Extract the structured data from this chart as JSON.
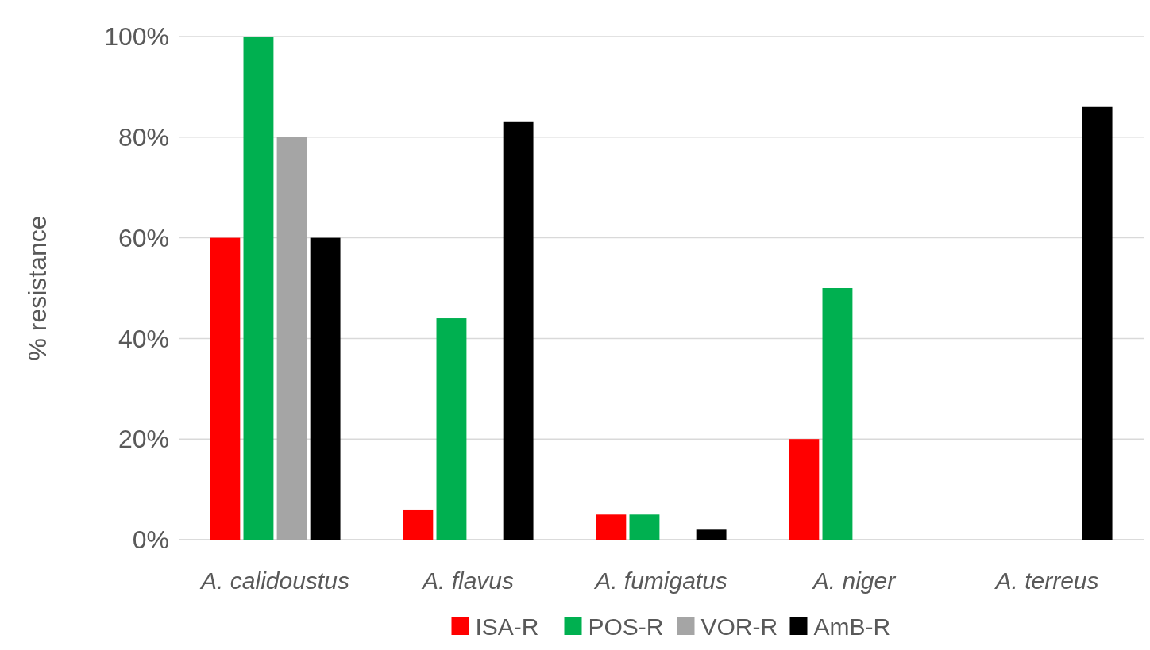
{
  "chart_data": {
    "type": "bar",
    "ylabel": "% resistance",
    "categories": [
      "A. calidoustus",
      "A. flavus",
      "A. fumigatus",
      "A. niger",
      "A. terreus"
    ],
    "series": [
      {
        "name": "ISA-R",
        "color": "#ff0000",
        "values": [
          60,
          6,
          5,
          20,
          0
        ]
      },
      {
        "name": "POS-R",
        "color": "#00b050",
        "values": [
          100,
          44,
          5,
          50,
          0
        ]
      },
      {
        "name": "VOR-R",
        "color": "#a5a5a5",
        "values": [
          80,
          0,
          0,
          0,
          0
        ]
      },
      {
        "name": "AmB-R",
        "color": "#000000",
        "values": [
          60,
          83,
          2,
          0,
          86
        ]
      }
    ],
    "ylim": [
      0,
      100
    ],
    "yticks": [
      {
        "value": 0,
        "label": "0%"
      },
      {
        "value": 20,
        "label": "20%"
      },
      {
        "value": 40,
        "label": "40%"
      },
      {
        "value": 60,
        "label": "60%"
      },
      {
        "value": 80,
        "label": "80%"
      },
      {
        "value": 100,
        "label": "100%"
      }
    ],
    "grid": "y",
    "legend": "bottom"
  }
}
